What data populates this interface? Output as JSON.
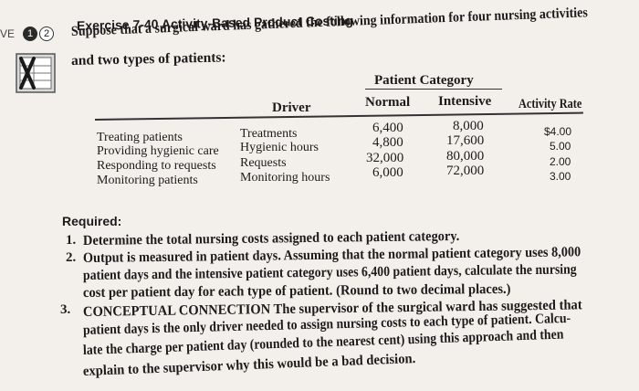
{
  "header": {
    "ve_label": "VE",
    "step_one": "1",
    "step_two": "2",
    "exercise_title": "Exercise 7-40 Activity-Based Product Costing"
  },
  "intro": {
    "line1": "Suppose that a surgical ward has gathered the following information for four nursing activities",
    "line2": "and two types of patients:"
  },
  "table": {
    "group_header": "Patient Category",
    "columns": [
      "Driver",
      "Normal",
      "Intensive",
      "Activity Rate"
    ],
    "rows": [
      {
        "activity": "Treating patients",
        "driver": "Treatments",
        "normal": "6,400",
        "intensive": "8,000",
        "rate": "$4.00"
      },
      {
        "activity": "Providing hygienic care",
        "driver": "Hygienic hours",
        "normal": "4,800",
        "intensive": "17,600",
        "rate": "5.00"
      },
      {
        "activity": "Responding to requests",
        "driver": "Requests",
        "normal": "32,000",
        "intensive": "80,000",
        "rate": "2.00"
      },
      {
        "activity": "Monitoring patients",
        "driver": "Monitoring hours",
        "normal": "6,000",
        "intensive": "72,000",
        "rate": "3.00"
      }
    ]
  },
  "required": {
    "label": "Required:",
    "items": [
      {
        "number": "1.",
        "lines": [
          "Determine the total nursing costs assigned to each patient category."
        ]
      },
      {
        "number": "2.",
        "lines": [
          "Output is measured in patient days. Assuming that the normal patient category uses 8,000",
          "patient days and the intensive patient category uses 6,400 patient days, calculate the nursing",
          "cost per patient day for each type of patient. (Round to two decimal places.)"
        ]
      },
      {
        "number": "3.",
        "lines": [
          "CONCEPTUAL CONNECTION The supervisor of the surgical ward has suggested that",
          "patient days is the only driver needed to assign nursing costs to each type of patient. Calcu-",
          "late the charge per patient day (rounded to the nearest cent) using this approach and then",
          "explain to the supervisor why this would be a bad decision."
        ]
      }
    ]
  }
}
